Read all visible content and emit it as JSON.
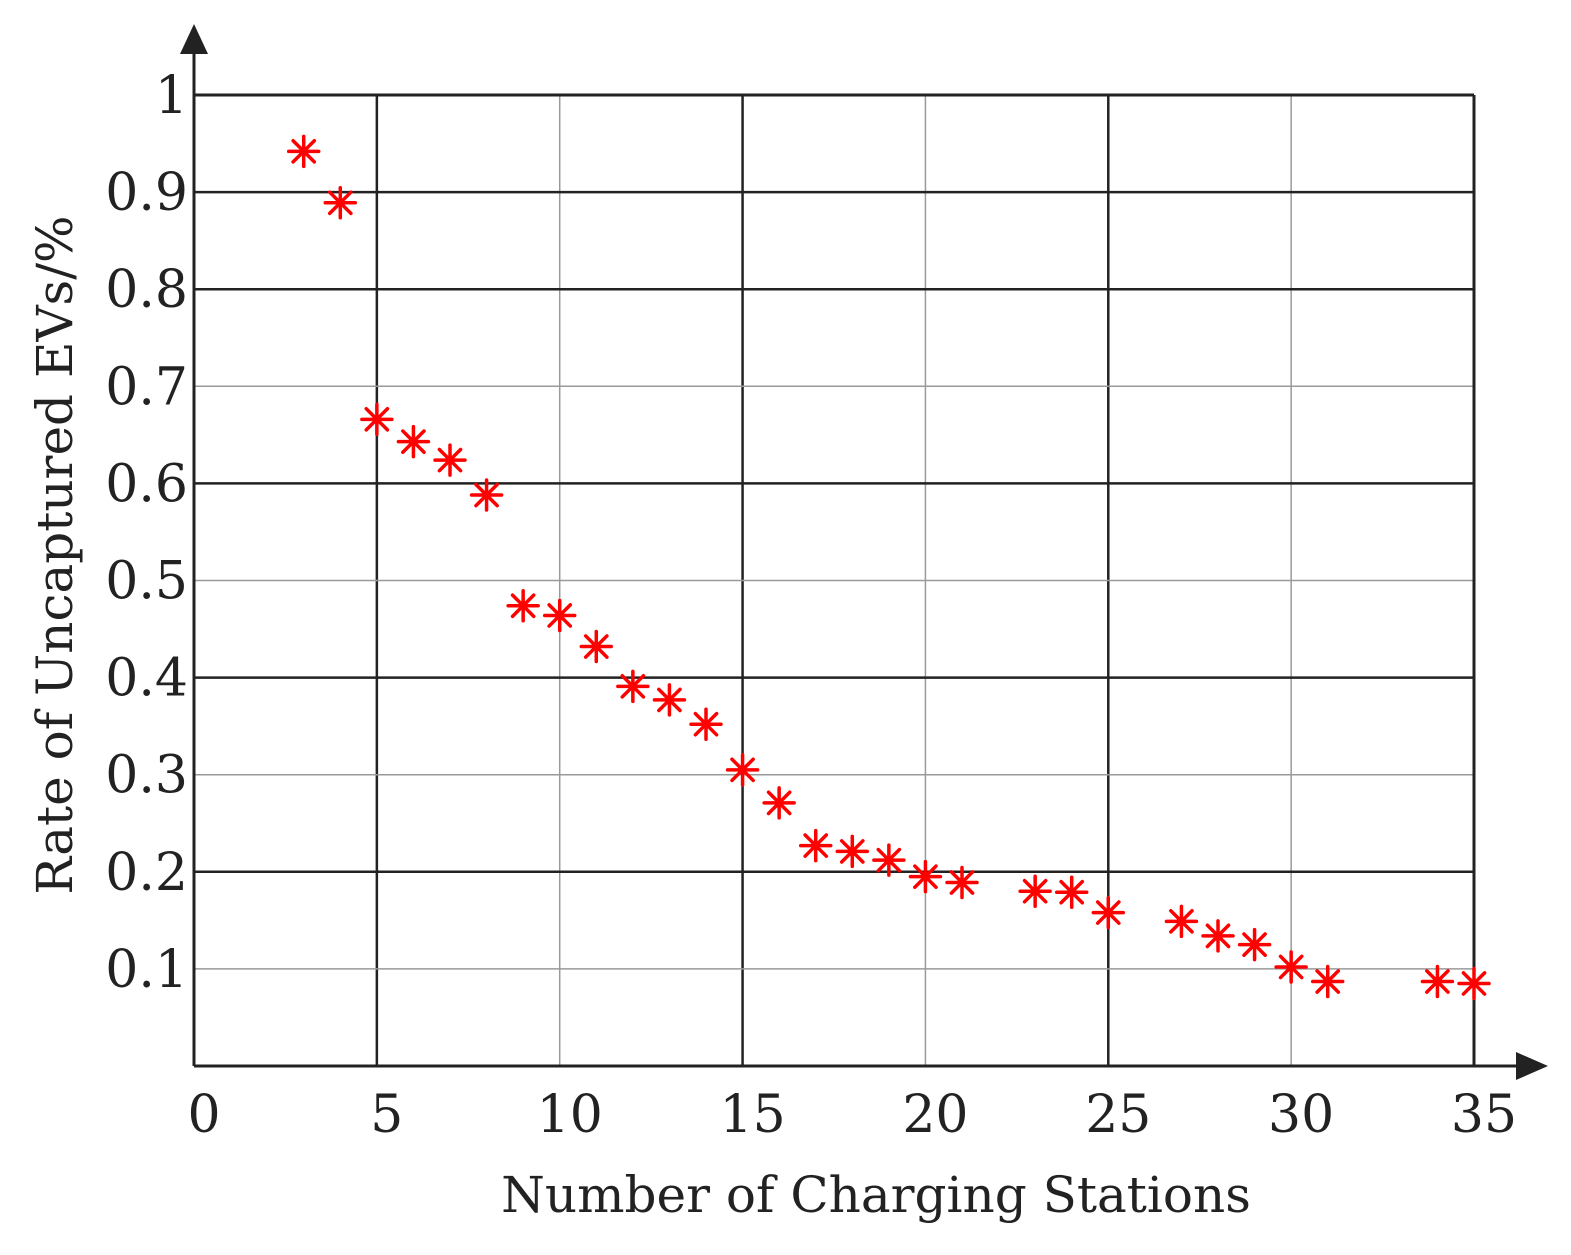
{
  "chart_data": {
    "type": "scatter",
    "title": "",
    "xlabel": "Number of Charging Stations",
    "ylabel": "Rate of Uncaptured EVs/%",
    "xlim": [
      0,
      35
    ],
    "ylim": [
      0,
      1
    ],
    "x_ticks": [
      "0",
      "5",
      "10",
      "15",
      "20",
      "25",
      "30",
      "35"
    ],
    "y_ticks": [
      "0.1",
      "0.2",
      "0.3",
      "0.4",
      "0.5",
      "0.6",
      "0.7",
      "0.8",
      "0.9",
      "1"
    ],
    "grid": true,
    "marker": "asterisk",
    "colors": {
      "marker": "#ff0000",
      "axis": "#222222",
      "grid_major": "#222222",
      "grid_minor": "#9a9a9a"
    },
    "series": [
      {
        "x": [
          3,
          4,
          5,
          6,
          7,
          8,
          9,
          10,
          11,
          12,
          13,
          14,
          15,
          16,
          17,
          18,
          19,
          20,
          21,
          23,
          24,
          25,
          27,
          28,
          29,
          30,
          31,
          34,
          35
        ],
        "y": [
          0.942,
          0.889,
          0.666,
          0.643,
          0.624,
          0.588,
          0.474,
          0.464,
          0.432,
          0.391,
          0.377,
          0.352,
          0.305,
          0.271,
          0.227,
          0.221,
          0.212,
          0.195,
          0.189,
          0.18,
          0.179,
          0.158,
          0.149,
          0.134,
          0.125,
          0.102,
          0.087,
          0.087,
          0.085
        ]
      }
    ]
  }
}
